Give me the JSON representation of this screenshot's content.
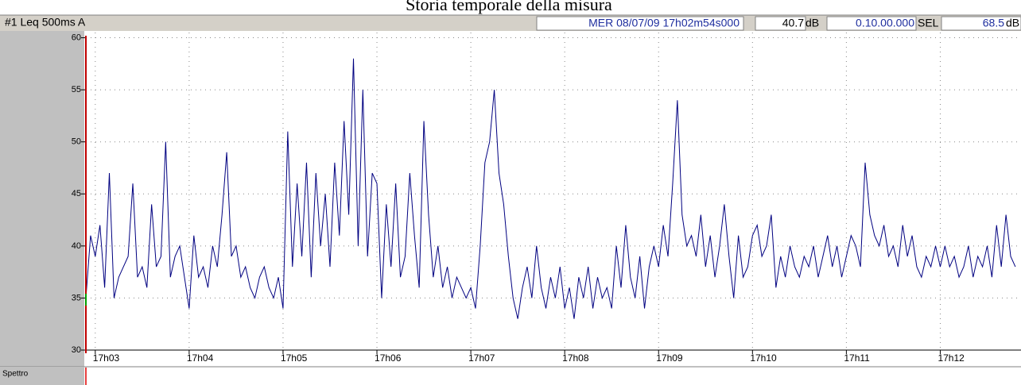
{
  "chart_data": {
    "type": "line",
    "title": "Storia temporale della misura",
    "channel": "#1  Leq 500ms  A",
    "timestamp": "MER 08/07/09 17h02m54s000",
    "level": "40.7",
    "level_unit": "dB",
    "duration": "0.10.00.000",
    "sel_label": "SEL",
    "sel_value": "68.5",
    "sel_unit": "dB",
    "panel_label": "Spettro",
    "grid": true,
    "xlim": [
      1022.9,
      1032.86
    ],
    "xticks": [
      {
        "value": 1023,
        "label": "17h03"
      },
      {
        "value": 1024,
        "label": "17h04"
      },
      {
        "value": 1025,
        "label": "17h05"
      },
      {
        "value": 1026,
        "label": "17h06"
      },
      {
        "value": 1027,
        "label": "17h07"
      },
      {
        "value": 1028,
        "label": "17h08"
      },
      {
        "value": 1029,
        "label": "17h09"
      },
      {
        "value": 1030,
        "label": "17h10"
      },
      {
        "value": 1031,
        "label": "17h11"
      },
      {
        "value": 1032,
        "label": "17h12"
      }
    ],
    "ylim": [
      30,
      60.5
    ],
    "yticks": [
      30,
      35,
      40,
      45,
      50,
      55,
      60
    ],
    "x": [
      1022.9,
      1022.95,
      1023.0,
      1023.05,
      1023.1,
      1023.15,
      1023.2,
      1023.25,
      1023.3,
      1023.35,
      1023.4,
      1023.45,
      1023.5,
      1023.55,
      1023.6,
      1023.65,
      1023.7,
      1023.75,
      1023.8,
      1023.85,
      1023.9,
      1023.95,
      1024.0,
      1024.05,
      1024.1,
      1024.15,
      1024.2,
      1024.25,
      1024.3,
      1024.35,
      1024.4,
      1024.45,
      1024.5,
      1024.55,
      1024.6,
      1024.65,
      1024.7,
      1024.75,
      1024.8,
      1024.85,
      1024.9,
      1024.95,
      1025.0,
      1025.05,
      1025.1,
      1025.15,
      1025.2,
      1025.25,
      1025.3,
      1025.35,
      1025.4,
      1025.45,
      1025.5,
      1025.55,
      1025.6,
      1025.65,
      1025.7,
      1025.75,
      1025.8,
      1025.85,
      1025.9,
      1025.95,
      1026.0,
      1026.05,
      1026.1,
      1026.15,
      1026.2,
      1026.25,
      1026.3,
      1026.35,
      1026.4,
      1026.45,
      1026.5,
      1026.55,
      1026.6,
      1026.65,
      1026.7,
      1026.75,
      1026.8,
      1026.85,
      1026.9,
      1026.95,
      1027.0,
      1027.05,
      1027.1,
      1027.15,
      1027.2,
      1027.25,
      1027.3,
      1027.35,
      1027.4,
      1027.45,
      1027.5,
      1027.55,
      1027.6,
      1027.65,
      1027.7,
      1027.75,
      1027.8,
      1027.85,
      1027.9,
      1027.95,
      1028.0,
      1028.05,
      1028.1,
      1028.15,
      1028.2,
      1028.25,
      1028.3,
      1028.35,
      1028.4,
      1028.45,
      1028.5,
      1028.55,
      1028.6,
      1028.65,
      1028.7,
      1028.75,
      1028.8,
      1028.85,
      1028.9,
      1028.95,
      1029.0,
      1029.05,
      1029.1,
      1029.15,
      1029.2,
      1029.25,
      1029.3,
      1029.35,
      1029.4,
      1029.45,
      1029.5,
      1029.55,
      1029.6,
      1029.65,
      1029.7,
      1029.75,
      1029.8,
      1029.85,
      1029.9,
      1029.95,
      1030.0,
      1030.05,
      1030.1,
      1030.15,
      1030.2,
      1030.25,
      1030.3,
      1030.35,
      1030.4,
      1030.45,
      1030.5,
      1030.55,
      1030.6,
      1030.65,
      1030.7,
      1030.75,
      1030.8,
      1030.85,
      1030.9,
      1030.95,
      1031.0,
      1031.05,
      1031.1,
      1031.15,
      1031.2,
      1031.25,
      1031.3,
      1031.35,
      1031.4,
      1031.45,
      1031.5,
      1031.55,
      1031.6,
      1031.65,
      1031.7,
      1031.75,
      1031.8,
      1031.85,
      1031.9,
      1031.95,
      1032.0,
      1032.05,
      1032.1,
      1032.15,
      1032.2,
      1032.25,
      1032.3,
      1032.35,
      1032.4,
      1032.45,
      1032.5,
      1032.55,
      1032.6,
      1032.65,
      1032.7,
      1032.75,
      1032.8
    ],
    "series": [
      {
        "name": "Leq",
        "color": "#000080",
        "values": [
          35,
          41,
          39,
          42,
          36,
          47,
          35,
          37,
          38,
          39,
          46,
          37,
          38,
          36,
          44,
          38,
          39,
          50,
          37,
          39,
          40,
          37,
          34,
          41,
          37,
          38,
          36,
          40,
          38,
          43,
          49,
          39,
          40,
          37,
          38,
          36,
          35,
          37,
          38,
          36,
          35,
          37,
          34,
          51,
          38,
          46,
          39,
          48,
          37,
          47,
          40,
          45,
          38,
          48,
          41,
          52,
          43,
          58,
          40,
          55,
          39,
          47,
          46,
          35,
          44,
          38,
          46,
          37,
          39,
          47,
          41,
          36,
          52,
          43,
          37,
          40,
          36,
          38,
          35,
          37,
          36,
          35,
          36,
          34,
          40,
          48,
          50,
          55,
          47,
          44,
          39,
          35,
          33,
          36,
          38,
          35,
          40,
          36,
          34,
          37,
          35,
          38,
          34,
          36,
          33,
          37,
          35,
          38,
          34,
          37,
          35,
          36,
          34,
          40,
          36,
          42,
          37,
          35,
          39,
          34,
          38,
          40,
          38,
          42,
          39,
          46,
          54,
          43,
          40,
          41,
          39,
          43,
          38,
          41,
          37,
          40,
          44,
          39,
          35,
          41,
          37,
          38,
          41,
          42,
          39,
          40,
          43,
          36,
          39,
          37,
          40,
          38,
          37,
          39,
          38,
          40,
          37,
          39,
          41,
          38,
          40,
          37,
          39,
          41,
          40,
          38,
          48,
          43,
          41,
          40,
          42,
          39,
          40,
          38,
          42,
          39,
          41,
          38,
          37,
          39,
          38,
          40,
          38,
          40,
          38,
          39,
          37,
          38,
          40,
          37,
          39,
          38,
          40,
          37,
          42,
          38,
          43,
          39,
          38
        ]
      }
    ]
  }
}
